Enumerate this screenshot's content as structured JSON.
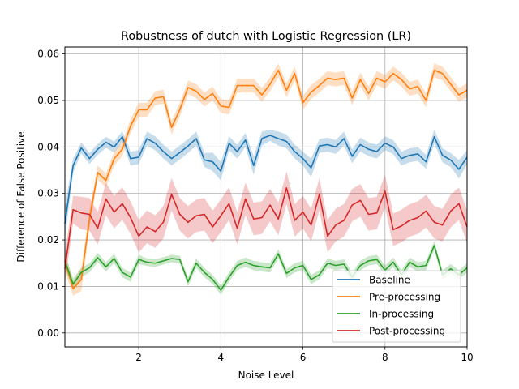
{
  "chart_data": {
    "type": "line",
    "title": "Robustness of dutch with Logistic Regression (LR)",
    "xlabel": "Noise Level",
    "ylabel": "Difference of False Positive",
    "xlim": [
      0.2,
      10
    ],
    "ylim": [
      -0.003,
      0.0615
    ],
    "xticks": [
      2,
      4,
      6,
      8,
      10
    ],
    "yticks": [
      0.0,
      0.01,
      0.02,
      0.03,
      0.04,
      0.05,
      0.06
    ],
    "ytick_labels": [
      "0.00",
      "0.01",
      "0.02",
      "0.03",
      "0.04",
      "0.05",
      "0.06"
    ],
    "grid": true,
    "legend_position": "lower-right",
    "x": [
      0.2,
      0.4,
      0.6,
      0.8,
      1.0,
      1.2,
      1.4,
      1.6,
      1.8,
      2.0,
      2.2,
      2.4,
      2.6,
      2.8,
      3.0,
      3.2,
      3.4,
      3.6,
      3.8,
      4.0,
      4.2,
      4.4,
      4.6,
      4.8,
      5.0,
      5.2,
      5.4,
      5.6,
      5.8,
      6.0,
      6.2,
      6.4,
      6.6,
      6.8,
      7.0,
      7.2,
      7.4,
      7.6,
      7.8,
      8.0,
      8.2,
      8.4,
      8.6,
      8.8,
      9.0,
      9.2,
      9.4,
      9.6,
      9.8,
      10.0
    ],
    "series": [
      {
        "name": "Baseline",
        "color": "#1f77b4",
        "values": [
          0.0235,
          0.036,
          0.0398,
          0.0375,
          0.0395,
          0.041,
          0.04,
          0.0422,
          0.0375,
          0.0378,
          0.0418,
          0.0408,
          0.039,
          0.0375,
          0.0388,
          0.0402,
          0.0418,
          0.0372,
          0.0368,
          0.0348,
          0.0408,
          0.039,
          0.0415,
          0.036,
          0.0418,
          0.0425,
          0.0418,
          0.0412,
          0.039,
          0.0375,
          0.0355,
          0.0402,
          0.0405,
          0.04,
          0.0418,
          0.038,
          0.0405,
          0.0395,
          0.039,
          0.0408,
          0.04,
          0.0375,
          0.0382,
          0.0385,
          0.0368,
          0.0422,
          0.0382,
          0.0372,
          0.0352,
          0.0378
        ],
        "band": [
          0.0035,
          0.0015,
          0.0012,
          0.0012,
          0.0012,
          0.0012,
          0.0012,
          0.0012,
          0.0015,
          0.0015,
          0.0015,
          0.0015,
          0.0015,
          0.0015,
          0.0015,
          0.0015,
          0.0015,
          0.0015,
          0.002,
          0.002,
          0.0015,
          0.0015,
          0.0015,
          0.002,
          0.0015,
          0.0012,
          0.0015,
          0.0015,
          0.0015,
          0.0015,
          0.002,
          0.0015,
          0.0015,
          0.0015,
          0.0015,
          0.0015,
          0.0015,
          0.0015,
          0.0015,
          0.0015,
          0.0015,
          0.0015,
          0.0015,
          0.0015,
          0.0015,
          0.0015,
          0.0015,
          0.0015,
          0.002,
          0.0015
        ]
      },
      {
        "name": "Pre-processing",
        "color": "#ff7f0e",
        "values": [
          0.0155,
          0.0095,
          0.0115,
          0.0245,
          0.0345,
          0.0328,
          0.0375,
          0.0395,
          0.0445,
          0.048,
          0.048,
          0.0505,
          0.0508,
          0.0442,
          0.048,
          0.0528,
          0.052,
          0.0502,
          0.0515,
          0.0488,
          0.0485,
          0.0532,
          0.0532,
          0.0532,
          0.0512,
          0.0535,
          0.0565,
          0.0522,
          0.0558,
          0.0495,
          0.0518,
          0.0532,
          0.0548,
          0.0545,
          0.0548,
          0.0505,
          0.0545,
          0.0515,
          0.0548,
          0.054,
          0.0558,
          0.0545,
          0.0525,
          0.053,
          0.05,
          0.0565,
          0.0558,
          0.0535,
          0.0512,
          0.0522
        ],
        "band": [
          0.002,
          0.0015,
          0.0025,
          0.002,
          0.0015,
          0.0015,
          0.0015,
          0.0015,
          0.0015,
          0.0015,
          0.0015,
          0.0015,
          0.0015,
          0.0015,
          0.0015,
          0.0015,
          0.0015,
          0.0015,
          0.0015,
          0.0015,
          0.0015,
          0.0015,
          0.0015,
          0.0015,
          0.0015,
          0.0015,
          0.0015,
          0.0015,
          0.0015,
          0.0015,
          0.0015,
          0.0015,
          0.0015,
          0.0015,
          0.0015,
          0.0015,
          0.0015,
          0.0015,
          0.0015,
          0.0015,
          0.0015,
          0.0015,
          0.0015,
          0.0015,
          0.0015,
          0.0015,
          0.0015,
          0.0015,
          0.0015,
          0.0015
        ]
      },
      {
        "name": "In-processing",
        "color": "#2ca02c",
        "values": [
          0.0155,
          0.0105,
          0.013,
          0.014,
          0.0162,
          0.0142,
          0.016,
          0.013,
          0.012,
          0.0158,
          0.0152,
          0.015,
          0.0155,
          0.016,
          0.0158,
          0.011,
          0.015,
          0.013,
          0.0115,
          0.0092,
          0.012,
          0.0145,
          0.0152,
          0.0145,
          0.0142,
          0.014,
          0.017,
          0.0128,
          0.014,
          0.0145,
          0.0115,
          0.0125,
          0.015,
          0.0145,
          0.0148,
          0.012,
          0.0145,
          0.0155,
          0.0158,
          0.0135,
          0.0152,
          0.0125,
          0.0152,
          0.0142,
          0.0145,
          0.0188,
          0.0125,
          0.0138,
          0.0125,
          0.014
        ],
        "band": [
          0.0015,
          0.0012,
          0.001,
          0.001,
          0.001,
          0.001,
          0.001,
          0.001,
          0.001,
          0.001,
          0.0008,
          0.0008,
          0.0008,
          0.0008,
          0.0008,
          0.001,
          0.001,
          0.001,
          0.001,
          0.001,
          0.001,
          0.001,
          0.001,
          0.001,
          0.001,
          0.001,
          0.001,
          0.001,
          0.001,
          0.001,
          0.001,
          0.001,
          0.001,
          0.001,
          0.001,
          0.001,
          0.001,
          0.001,
          0.001,
          0.001,
          0.001,
          0.001,
          0.001,
          0.001,
          0.001,
          0.001,
          0.001,
          0.001,
          0.001,
          0.001
        ]
      },
      {
        "name": "Post-processing",
        "color": "#d62728",
        "values": [
          0.0138,
          0.0265,
          0.0258,
          0.0255,
          0.0225,
          0.0288,
          0.026,
          0.0278,
          0.0248,
          0.0208,
          0.0228,
          0.0218,
          0.0238,
          0.0298,
          0.0255,
          0.0238,
          0.0252,
          0.0255,
          0.0228,
          0.0252,
          0.0278,
          0.0225,
          0.0288,
          0.0245,
          0.0248,
          0.0275,
          0.0245,
          0.0312,
          0.0242,
          0.026,
          0.0232,
          0.0298,
          0.0208,
          0.0232,
          0.0242,
          0.0275,
          0.0285,
          0.0255,
          0.0258,
          0.0305,
          0.0222,
          0.023,
          0.0242,
          0.0248,
          0.0262,
          0.0238,
          0.0232,
          0.0262,
          0.0278,
          0.0228
        ],
        "band": [
          0.003,
          0.003,
          0.0035,
          0.0035,
          0.0035,
          0.0035,
          0.0035,
          0.0035,
          0.0035,
          0.0035,
          0.0035,
          0.0035,
          0.0035,
          0.0035,
          0.0035,
          0.0035,
          0.0035,
          0.0035,
          0.0035,
          0.0035,
          0.0035,
          0.0035,
          0.0035,
          0.0035,
          0.0035,
          0.0035,
          0.0035,
          0.0035,
          0.0035,
          0.0035,
          0.0035,
          0.0035,
          0.0035,
          0.0035,
          0.0035,
          0.0035,
          0.0035,
          0.0035,
          0.0035,
          0.0035,
          0.0035,
          0.0035,
          0.0035,
          0.0035,
          0.0035,
          0.0035,
          0.0035,
          0.0035,
          0.0035,
          0.0035
        ]
      }
    ]
  }
}
